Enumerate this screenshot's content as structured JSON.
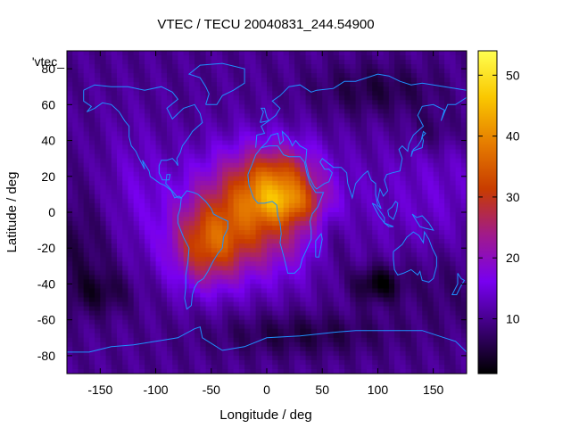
{
  "chart_data": {
    "type": "heatmap",
    "title": "VTEC / TECU 20040831_244.54900",
    "xlabel": "Longitude / deg",
    "ylabel": "Latitude / deg",
    "key_label": "'vtec_",
    "xlim": [
      -180,
      180
    ],
    "ylim": [
      -90,
      90
    ],
    "x_ticks": [
      -150,
      -100,
      -50,
      0,
      50,
      100,
      150
    ],
    "y_ticks": [
      -80,
      -60,
      -40,
      -20,
      0,
      20,
      40,
      60,
      80
    ],
    "colorbar": {
      "range": [
        1,
        54
      ],
      "ticks": [
        10,
        20,
        30,
        40,
        50
      ],
      "palette": [
        "#000000",
        "#3c0078",
        "#7800f0",
        "#a01a8c",
        "#c83c00",
        "#e67d00",
        "#fac800",
        "#ffff50"
      ]
    },
    "coastline_color": "#1e90ff",
    "grid": false,
    "regions": [
      {
        "feature": "peak",
        "lon": 5,
        "lat": 18,
        "tec": 52
      },
      {
        "feature": "south america anomaly",
        "lon": -55,
        "lat": -20,
        "tec": 34
      },
      {
        "feature": "equatorial africa",
        "lon": 20,
        "lat": 0,
        "tec": 44
      },
      {
        "feature": "night minimum",
        "lon": 100,
        "lat": -40,
        "tec": 2
      },
      {
        "feature": "background",
        "lon": 150,
        "lat": 20,
        "tec": 12
      }
    ]
  }
}
